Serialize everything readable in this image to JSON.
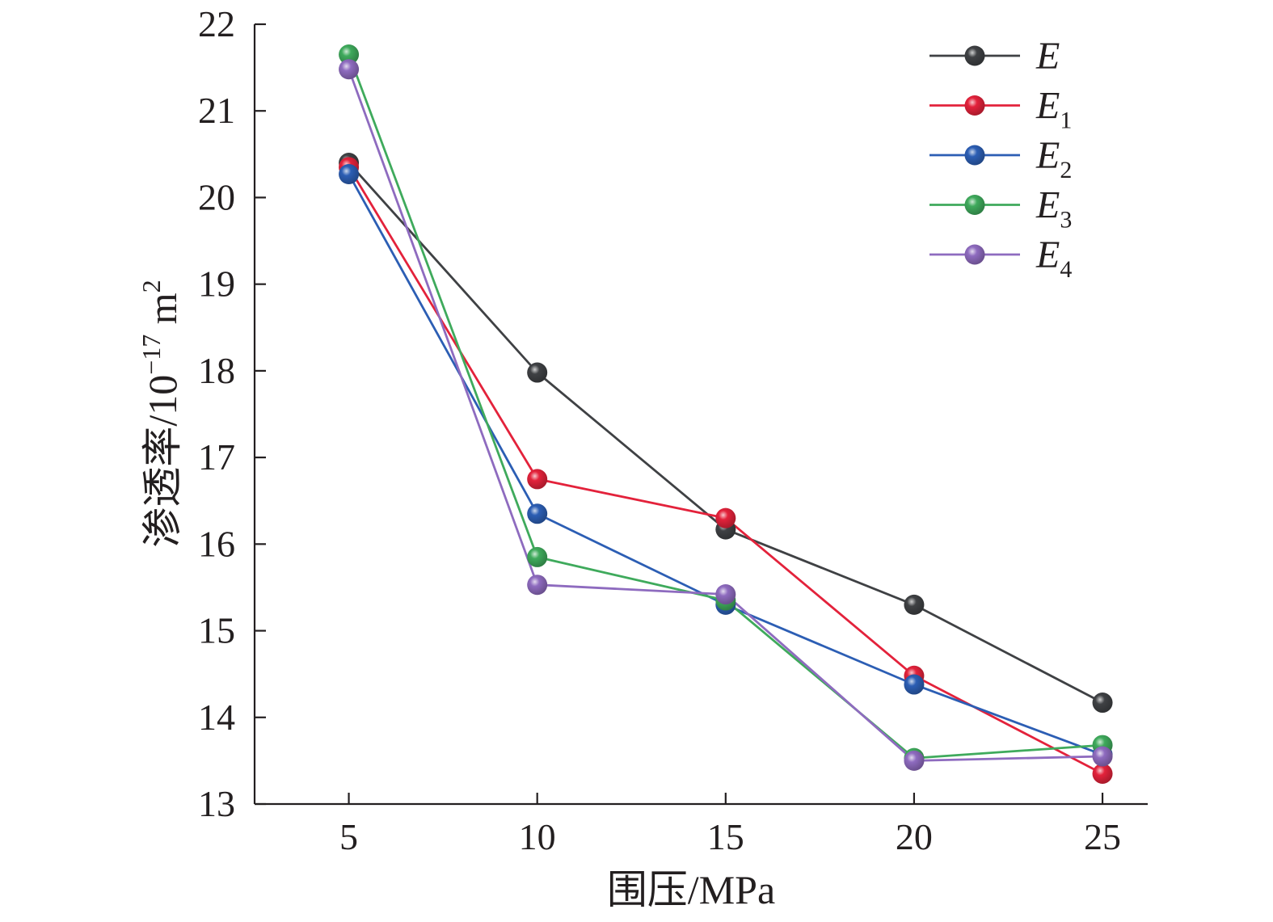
{
  "chart_data": {
    "type": "line",
    "xlabel": "围压/MPa",
    "ylabel": {
      "main": "渗透率/10",
      "exp": "−17",
      "unit": " m",
      "unit_exp": "2"
    },
    "x": [
      5,
      10,
      15,
      20,
      25
    ],
    "xlim": [
      2.5,
      26.2
    ],
    "ylim": [
      13,
      22
    ],
    "xticks": [
      5,
      10,
      15,
      20,
      25
    ],
    "yticks": [
      13,
      14,
      15,
      16,
      17,
      18,
      19,
      20,
      21,
      22
    ],
    "grid": false,
    "legend_position": "top-right",
    "series": [
      {
        "name": "E",
        "sub": "",
        "color": "#3f4144",
        "values": [
          20.4,
          17.98,
          16.17,
          15.3,
          14.17
        ]
      },
      {
        "name": "E",
        "sub": "1",
        "color": "#e3223b",
        "values": [
          20.35,
          16.75,
          16.3,
          14.48,
          13.35
        ]
      },
      {
        "name": "E",
        "sub": "2",
        "color": "#2c5eb4",
        "values": [
          20.27,
          16.35,
          15.3,
          14.38,
          13.57
        ]
      },
      {
        "name": "E",
        "sub": "3",
        "color": "#3faa5c",
        "values": [
          21.65,
          15.85,
          15.35,
          13.53,
          13.68
        ]
      },
      {
        "name": "E",
        "sub": "4",
        "color": "#8e6bbf",
        "values": [
          21.48,
          15.53,
          15.42,
          13.5,
          13.55
        ]
      }
    ]
  }
}
